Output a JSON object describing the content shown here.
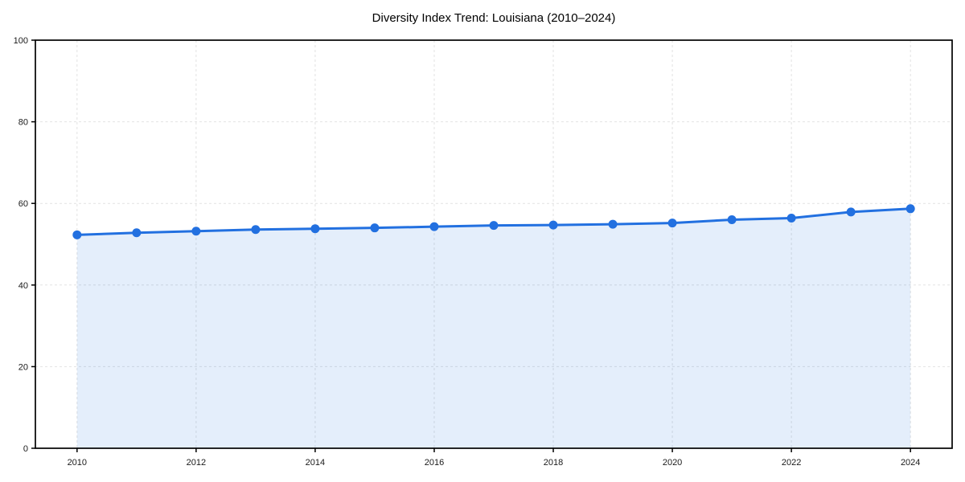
{
  "figure": {
    "title": "Diversity Index Trend: Louisiana (2010–2024)"
  },
  "chart_data": {
    "type": "area",
    "title": "Diversity Index Trend: Louisiana (2010–2024)",
    "xlabel": "",
    "ylabel": "",
    "x": [
      2010,
      2011,
      2012,
      2013,
      2014,
      2015,
      2016,
      2017,
      2018,
      2019,
      2020,
      2021,
      2022,
      2023,
      2024
    ],
    "series": [
      {
        "name": "Diversity Index",
        "values": [
          52.3,
          52.8,
          53.2,
          53.6,
          53.8,
          54.0,
          54.3,
          54.6,
          54.7,
          54.9,
          55.2,
          56.0,
          56.4,
          57.9,
          58.7
        ]
      }
    ],
    "xlim": [
      2009.3,
      2024.7
    ],
    "ylim": [
      0,
      100
    ],
    "xticks": [
      2010,
      2012,
      2014,
      2016,
      2018,
      2020,
      2022,
      2024
    ],
    "yticks": [
      0,
      20,
      40,
      60,
      80,
      100
    ],
    "grid": true,
    "grid_style": "dashed",
    "legend": "none",
    "colors": {
      "line": "#2270e0",
      "marker": "#2270e0",
      "fill": "rgba(34,112,224,0.12)",
      "grid": "#e2e2e2",
      "spine": "#000000",
      "text": "#1a1a1a"
    }
  }
}
